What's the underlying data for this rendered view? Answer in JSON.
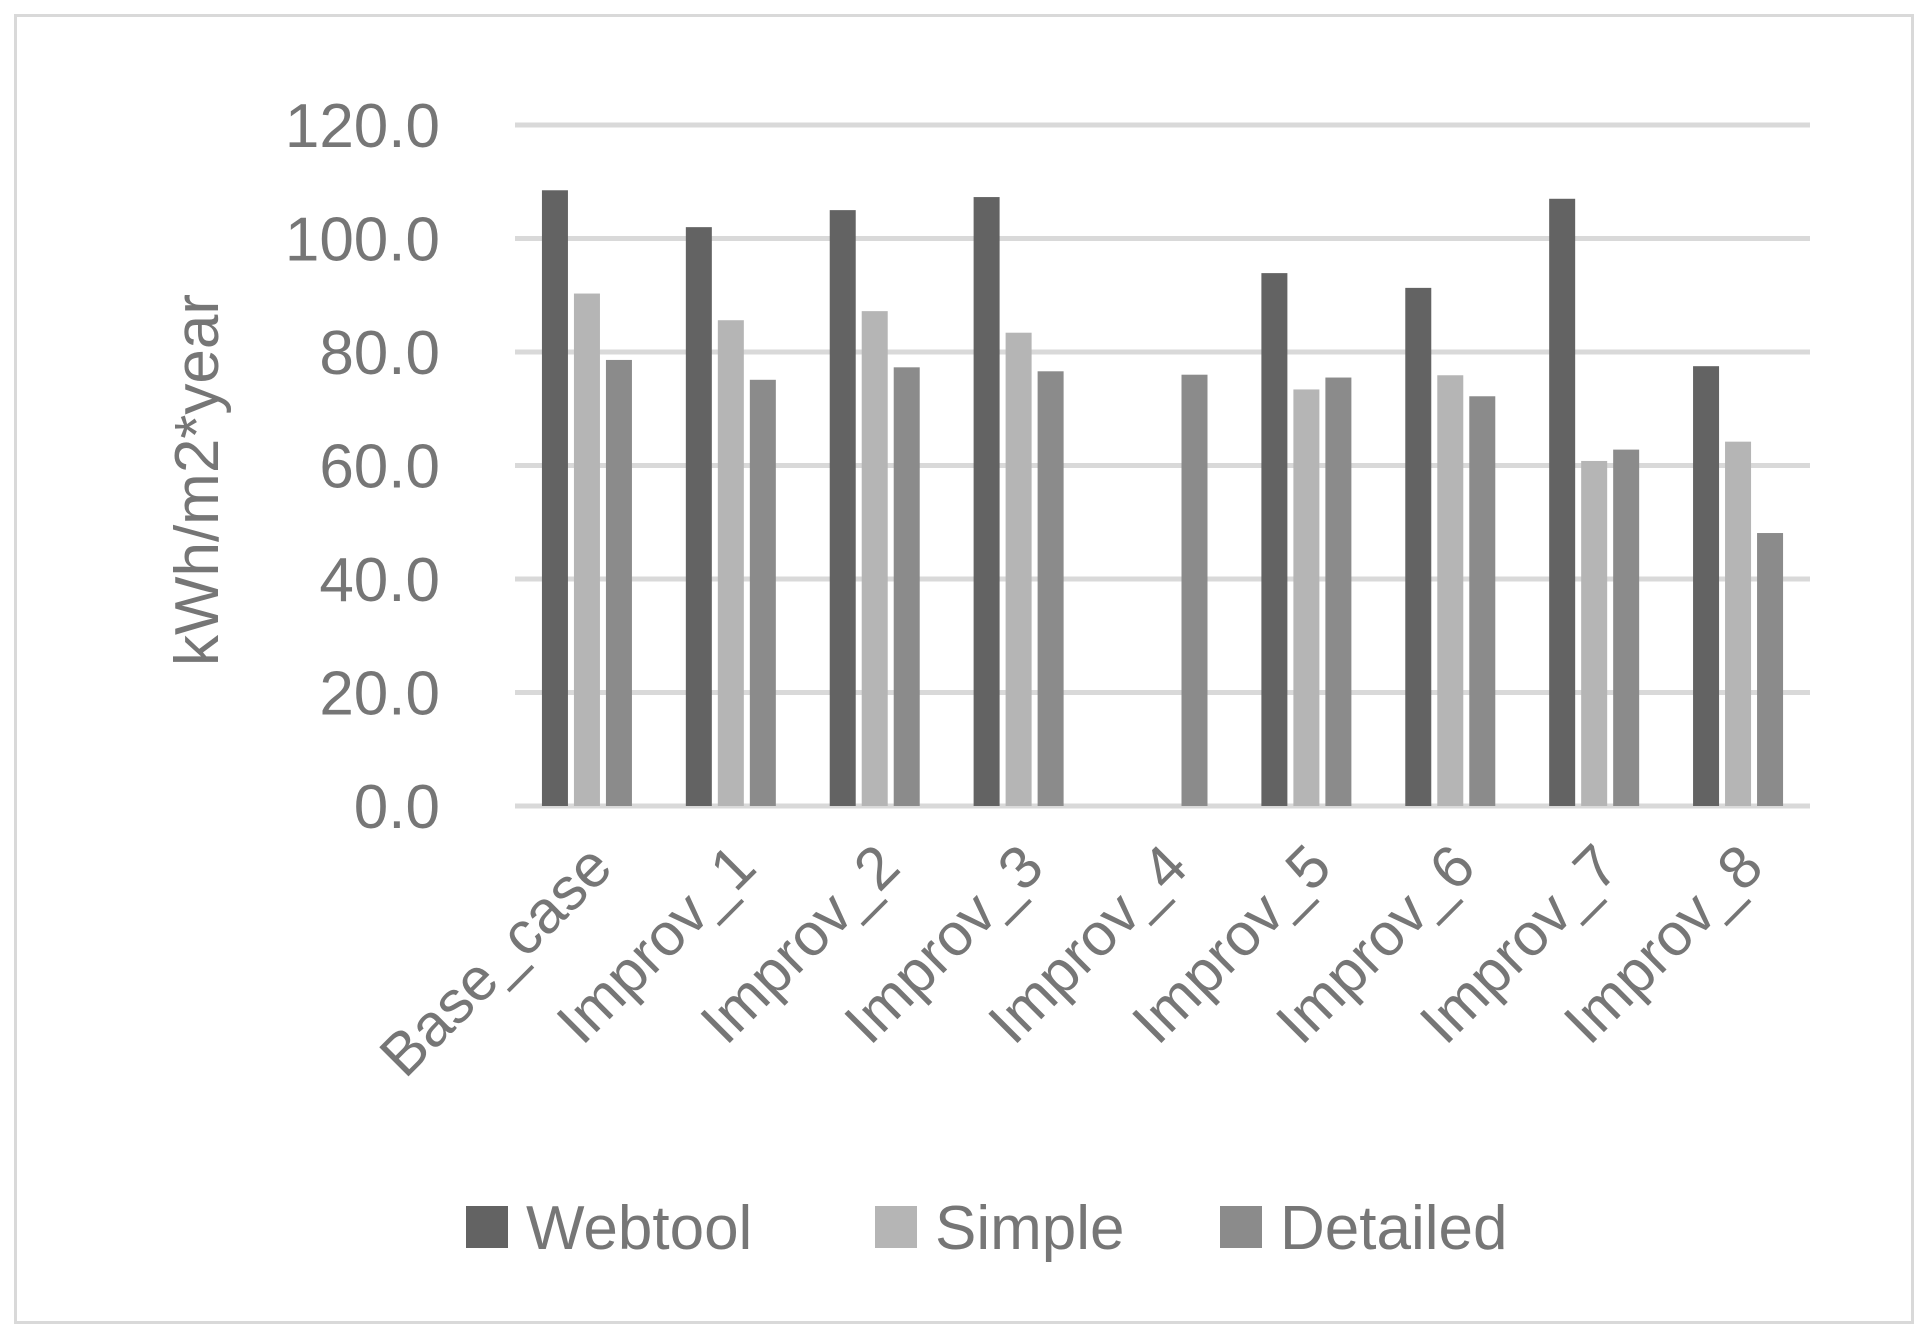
{
  "chart_data": {
    "type": "bar",
    "title": "",
    "xlabel": "",
    "ylabel": "kWh/m2*year",
    "ylim": [
      0,
      120
    ],
    "yticks": [
      "0.0",
      "20.0",
      "40.0",
      "60.0",
      "80.0",
      "100.0",
      "120.0"
    ],
    "grid": true,
    "legend_position": "bottom",
    "categories": [
      "Base_case",
      "Improv_1",
      "Improv_2",
      "Improv_3",
      "Improv_4",
      "Improv_5",
      "Improv_6",
      "Improv_7",
      "Improv_8"
    ],
    "series": [
      {
        "name": "Webtool",
        "color": "#636363",
        "values": [
          108.5,
          102.0,
          105.0,
          107.3,
          0,
          93.9,
          91.3,
          107.0,
          77.5
        ]
      },
      {
        "name": "Simple",
        "color": "#b5b5b5",
        "values": [
          90.3,
          85.6,
          87.2,
          83.4,
          0,
          73.4,
          75.9,
          60.8,
          64.2
        ]
      },
      {
        "name": "Detailed",
        "color": "#8b8b8b",
        "values": [
          78.6,
          75.1,
          77.3,
          76.6,
          76.0,
          75.5,
          72.2,
          62.8,
          48.1
        ]
      }
    ]
  }
}
